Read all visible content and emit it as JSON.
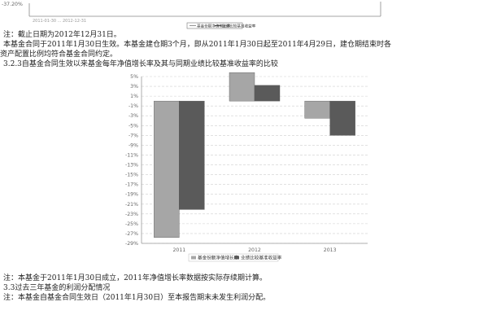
{
  "top_chart_fragment": {
    "y_tick": "-37.20%",
    "x_ticks_blurred": "2011-01-30 ... 2012-12-31",
    "legend": [
      "基金份额净值增长率",
      "业绩比较基准收益率"
    ]
  },
  "texts": {
    "note1": "注：截止日期为2012年12月31日。",
    "para1_line1": "本基金合同于2011年1月30日生效。本基金建仓期3个月，即从2011年1月30日起至2011年4月29日，建仓期结束时各",
    "para1_line2": "资产配置比例均符合基金合同约定。",
    "section_323": "3.2.3自基金合同生效以来基金每年净值增长率及其与同期业绩比较基准收益率的比较",
    "note2": "注：本基金于2011年1月30日成立，2011年净值增长率数据按实际存续期计算。",
    "section_33": "3.3过去三年基金的利润分配情况",
    "note3": "注：本基金自基金合同生效日（2011年1月30日）至本报告期末未发生利润分配。"
  },
  "colors": {
    "series_fund": "#a6a6a6",
    "series_benchmark": "#5a5a5a",
    "grid": "#cfcfcf"
  },
  "chart_data": {
    "type": "bar",
    "title": "",
    "xlabel": "",
    "ylabel": "",
    "categories": [
      "2011",
      "2012",
      "2013"
    ],
    "series": [
      {
        "name": "基金份额净值增长率",
        "values": [
          -27.8,
          5.8,
          -3.5
        ]
      },
      {
        "name": "业绩比较基准收益率",
        "values": [
          -22.1,
          3.2,
          -7.0
        ]
      }
    ],
    "y_ticks": [
      "5%",
      "3%",
      "1%",
      "-1%",
      "-3%",
      "-5%",
      "-7%",
      "-9%",
      "-11%",
      "-13%",
      "-15%",
      "-17%",
      "-19%",
      "-21%",
      "-23%",
      "-25%",
      "-27%",
      "-29%"
    ],
    "ylim": [
      -29,
      5
    ],
    "grid": true,
    "legend_position": "bottom"
  }
}
